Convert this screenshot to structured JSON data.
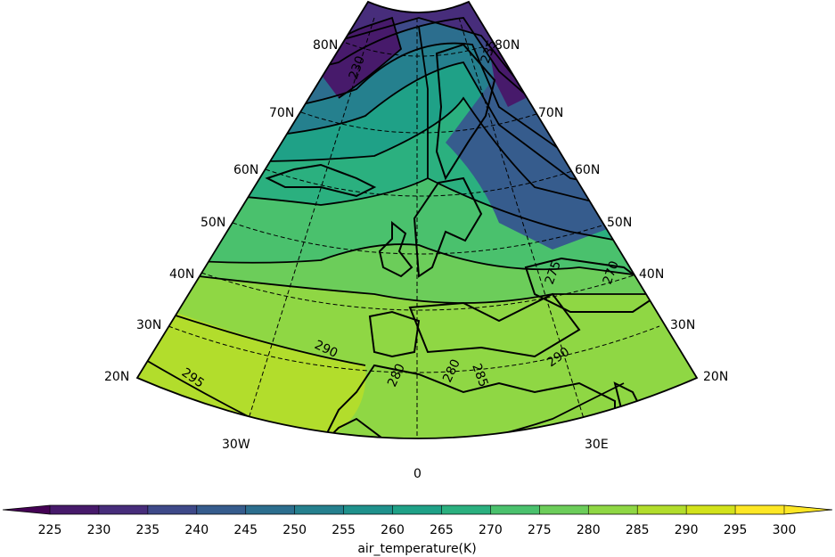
{
  "map": {
    "lat_labels": [
      "20N",
      "30N",
      "40N",
      "50N",
      "60N",
      "70N",
      "80N"
    ],
    "lon_labels": [
      "30W",
      "0",
      "30E"
    ],
    "contour_labels": [
      "230",
      "235",
      "270",
      "275",
      "280",
      "280",
      "285",
      "290",
      "290",
      "295"
    ]
  },
  "colorbar": {
    "ticks": [
      "225",
      "230",
      "235",
      "240",
      "245",
      "250",
      "255",
      "260",
      "265",
      "270",
      "275",
      "280",
      "285",
      "290",
      "295",
      "300"
    ],
    "label": "air_temperature(K)",
    "colors": [
      "#440154",
      "#471a6b",
      "#472d7b",
      "#3e4989",
      "#365c8d",
      "#2c6e8e",
      "#25808e",
      "#1f918c",
      "#1fa187",
      "#2bb07f",
      "#4ac16d",
      "#6ccd5a",
      "#8fd744",
      "#b2dd2c",
      "#d2e21b",
      "#fde725"
    ]
  }
}
